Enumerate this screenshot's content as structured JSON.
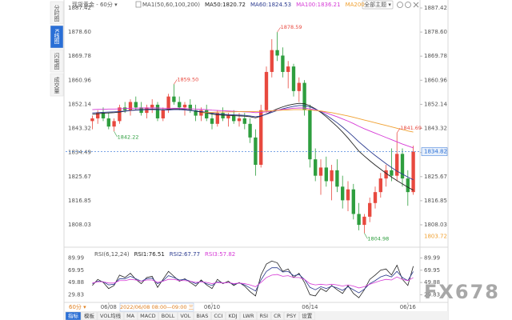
{
  "header": {
    "instrument": "现货黄金 - 60分 ▾",
    "theme_button": "全部主题 ▾"
  },
  "side_tabs": {
    "items": [
      "分时图",
      "K线图",
      "闪电图",
      "成交量"
    ],
    "active": 1
  },
  "period": "60分 ▾",
  "crosshair_label": "2022/06/08 08:00—09:00 三",
  "watermark": "FX678",
  "bottom_tabs": {
    "items": [
      "指标",
      "模板",
      "VOL均线",
      "MA",
      "MACD",
      "BOLL",
      "VOL",
      "BIAS",
      "CCI",
      "KDJ",
      "LWR",
      "RSI",
      "CR",
      "PSY",
      "设置"
    ],
    "active": 0
  },
  "chart_data": [
    {
      "type": "candlestick",
      "legend_title": "MA1(50,60,100,200)",
      "up_color": "#e8493f",
      "down_color": "#2e9e3e",
      "ylim": [
        1801,
        1888
      ],
      "yticks": [
        1887.42,
        {
          "value": 1878.6,
          "label": "1878.60"
        },
        1869.78,
        1860.96,
        1852.14,
        1843.32,
        1834.49,
        1825.67,
        1816.85,
        1808.03
      ],
      "open": [
        1846,
        1847,
        1849,
        1847,
        1844,
        1846,
        1851,
        1850,
        1853,
        1851,
        1849,
        1851,
        1852,
        1847,
        1850,
        1855,
        1853,
        1851,
        1852,
        1850,
        1848,
        1850,
        1847,
        1845,
        1849,
        1847,
        1848,
        1846,
        1847,
        1845,
        1840,
        1830,
        1850,
        1864,
        1872,
        1870,
        1864,
        1866,
        1857,
        1860,
        1850,
        1832,
        1826,
        1829,
        1824,
        1828,
        1822,
        1817,
        1821,
        1812,
        1808,
        1811,
        1816,
        1820,
        1825,
        1828,
        1826,
        1834,
        1825,
        1820
      ],
      "high": [
        1848,
        1850,
        1851,
        1849,
        1847,
        1852,
        1853,
        1854,
        1855,
        1853,
        1852,
        1854,
        1853,
        1851,
        1856,
        1859.5,
        1855,
        1853,
        1854,
        1852,
        1851,
        1852,
        1849,
        1850,
        1851,
        1849,
        1850,
        1849,
        1849,
        1847,
        1843,
        1852,
        1866,
        1876,
        1878.59,
        1873,
        1868,
        1867,
        1862,
        1861,
        1852,
        1836,
        1832,
        1833,
        1830,
        1832,
        1826,
        1824,
        1823,
        1816,
        1812,
        1818,
        1822,
        1827,
        1830,
        1836,
        1841.69,
        1836,
        1828,
        1837
      ],
      "low": [
        1843,
        1845,
        1846,
        1843,
        1842.22,
        1845,
        1849,
        1848,
        1850,
        1848,
        1847,
        1849,
        1846,
        1846,
        1849,
        1852,
        1850,
        1848,
        1849,
        1846,
        1846,
        1846,
        1843,
        1844,
        1846,
        1844,
        1845,
        1844,
        1843,
        1838,
        1826,
        1829,
        1849,
        1862,
        1868,
        1862,
        1858,
        1855,
        1853,
        1848,
        1829,
        1824,
        1819,
        1822,
        1817,
        1820,
        1814,
        1813,
        1810,
        1806,
        1804.98,
        1809,
        1814,
        1818,
        1822,
        1824,
        1824,
        1822,
        1815,
        1819
      ],
      "close": [
        1847,
        1849,
        1847,
        1844,
        1846,
        1851,
        1850,
        1853,
        1851,
        1849,
        1851,
        1852,
        1847,
        1850,
        1855,
        1853,
        1851,
        1852,
        1850,
        1848,
        1850,
        1847,
        1845,
        1849,
        1847,
        1848,
        1846,
        1847,
        1845,
        1840,
        1830,
        1850,
        1864,
        1872,
        1870,
        1864,
        1866,
        1857,
        1860,
        1850,
        1832,
        1826,
        1829,
        1824,
        1828,
        1822,
        1817,
        1821,
        1812,
        1808,
        1811,
        1816,
        1820,
        1825,
        1828,
        1826,
        1834,
        1825,
        1820,
        1834.82
      ],
      "series": [
        {
          "name": "MA50:1820.72",
          "color": "#222222",
          "values": [
            1848.5,
            1848.7,
            1848.9,
            1849.0,
            1849.1,
            1849.3,
            1849.6,
            1849.9,
            1850.1,
            1850.2,
            1850.3,
            1850.4,
            1850.3,
            1850.2,
            1850.3,
            1850.5,
            1850.5,
            1850.3,
            1850.0,
            1849.6,
            1849.3,
            1849.0,
            1848.6,
            1848.3,
            1848.2,
            1848.1,
            1848.0,
            1847.9,
            1847.8,
            1847.6,
            1847.2,
            1847.8,
            1848.6,
            1849.6,
            1850.5,
            1851.2,
            1851.8,
            1852.2,
            1852.5,
            1852.4,
            1851.6,
            1850.5,
            1849.2,
            1847.6,
            1845.8,
            1844.0,
            1842.0,
            1839.8,
            1837.4,
            1835.0,
            1833.2,
            1831.5,
            1829.9,
            1828.4,
            1826.9,
            1825.5,
            1824.2,
            1823.0,
            1821.8,
            1820.72
          ]
        },
        {
          "name": "MA60:1824.53",
          "color": "#2b3a8f",
          "values": [
            1849.0,
            1849.1,
            1849.2,
            1849.3,
            1849.4,
            1849.5,
            1849.7,
            1849.9,
            1850.0,
            1850.1,
            1850.2,
            1850.2,
            1850.2,
            1850.1,
            1850.1,
            1850.2,
            1850.2,
            1850.1,
            1849.9,
            1849.7,
            1849.5,
            1849.2,
            1848.9,
            1848.7,
            1848.5,
            1848.4,
            1848.3,
            1848.2,
            1848.1,
            1847.9,
            1847.6,
            1847.9,
            1848.5,
            1849.2,
            1849.9,
            1850.5,
            1851.0,
            1851.4,
            1851.7,
            1851.7,
            1851.2,
            1850.4,
            1849.4,
            1848.2,
            1846.8,
            1845.4,
            1843.8,
            1842.1,
            1840.3,
            1838.4,
            1836.7,
            1835.0,
            1833.4,
            1831.9,
            1830.4,
            1829.0,
            1827.7,
            1826.6,
            1825.5,
            1824.53
          ]
        },
        {
          "name": "MA100:1836.21",
          "color": "#d63ad6",
          "values": [
            1850.2,
            1850.3,
            1850.3,
            1850.4,
            1850.4,
            1850.5,
            1850.6,
            1850.7,
            1850.7,
            1850.8,
            1850.8,
            1850.8,
            1850.8,
            1850.7,
            1850.7,
            1850.7,
            1850.7,
            1850.6,
            1850.5,
            1850.4,
            1850.3,
            1850.2,
            1850.0,
            1849.9,
            1849.8,
            1849.7,
            1849.6,
            1849.5,
            1849.4,
            1849.3,
            1849.1,
            1849.2,
            1849.4,
            1849.7,
            1850.0,
            1850.3,
            1850.5,
            1850.7,
            1850.8,
            1850.8,
            1850.5,
            1850.1,
            1849.6,
            1849.0,
            1848.3,
            1847.6,
            1846.8,
            1846.0,
            1845.1,
            1844.1,
            1843.2,
            1842.4,
            1841.6,
            1840.8,
            1840.0,
            1839.2,
            1838.4,
            1837.6,
            1836.9,
            1836.21
          ]
        },
        {
          "name": "MA200",
          "color": "#f0a030",
          "values": [
            null,
            null,
            null,
            null,
            null,
            null,
            null,
            null,
            null,
            null,
            null,
            null,
            null,
            null,
            null,
            null,
            null,
            null,
            null,
            null,
            1849.0,
            1849.1,
            1849.2,
            1849.3,
            1849.3,
            1849.4,
            1849.4,
            1849.5,
            1849.5,
            1849.5,
            1849.5,
            1849.6,
            1849.7,
            1849.8,
            1849.9,
            1850.0,
            1850.1,
            1850.2,
            1850.2,
            1850.2,
            1850.1,
            1849.9,
            1849.7,
            1849.4,
            1849.1,
            1848.7,
            1848.3,
            1847.9,
            1847.4,
            1846.9,
            1846.4,
            1845.9,
            1845.4,
            1844.9,
            1844.4,
            1843.9,
            1843.4,
            1842.9,
            1842.4,
            1842.0
          ]
        }
      ],
      "annotations": [
        {
          "text": "1842.22",
          "x": 4,
          "y": 1842.22
        },
        {
          "text": "1859.50",
          "x": 15,
          "y": 1859.5
        },
        {
          "text": "1878.59",
          "x": 34,
          "y": 1878.59
        },
        {
          "text": "1804.98",
          "x": 50,
          "y": 1804.98
        },
        {
          "text": "1841.69",
          "x": 56,
          "y": 1841.69
        }
      ],
      "price_markers": [
        {
          "value": 1834.82,
          "color": "#2a6fd6"
        },
        {
          "value": 1803.72,
          "color": "#f0a030"
        }
      ]
    },
    {
      "type": "line",
      "title": "RSI(6,12,24)",
      "categories": [
        null,
        null,
        null,
        "06/08",
        null,
        null,
        null,
        null,
        null,
        null,
        null,
        null,
        null,
        null,
        null,
        null,
        null,
        null,
        null,
        null,
        null,
        null,
        "06/10",
        null,
        null,
        null,
        null,
        null,
        null,
        null,
        null,
        null,
        null,
        null,
        null,
        null,
        null,
        null,
        null,
        null,
        "06/14",
        null,
        null,
        null,
        null,
        null,
        null,
        null,
        null,
        null,
        null,
        null,
        null,
        null,
        null,
        null,
        null,
        null,
        "06/16",
        null
      ],
      "ylim": [
        20,
        101
      ],
      "yticks": [
        89.99,
        69.95,
        49.88,
        29.83
      ],
      "series": [
        {
          "name": "RSI1:76.51",
          "color": "#222222",
          "values": [
            45,
            55,
            50,
            40,
            45,
            62,
            58,
            65,
            55,
            48,
            58,
            60,
            42,
            55,
            68,
            60,
            52,
            56,
            50,
            44,
            54,
            46,
            40,
            55,
            48,
            52,
            45,
            50,
            44,
            35,
            28,
            62,
            80,
            85,
            82,
            68,
            72,
            58,
            65,
            50,
            30,
            28,
            40,
            35,
            45,
            38,
            32,
            45,
            32,
            25,
            38,
            55,
            62,
            70,
            72,
            62,
            78,
            55,
            45,
            76.51
          ]
        },
        {
          "name": "RSI2:67.77",
          "color": "#2b3a8f",
          "values": [
            48,
            52,
            51,
            46,
            47,
            56,
            56,
            60,
            56,
            52,
            56,
            57,
            48,
            53,
            61,
            58,
            54,
            55,
            52,
            48,
            52,
            48,
            45,
            51,
            49,
            50,
            47,
            49,
            46,
            41,
            36,
            54,
            68,
            74,
            74,
            67,
            68,
            61,
            63,
            55,
            42,
            38,
            43,
            40,
            44,
            41,
            37,
            43,
            38,
            33,
            39,
            48,
            53,
            59,
            62,
            59,
            68,
            58,
            53,
            67.77
          ]
        },
        {
          "name": "RSI3:57.82",
          "color": "#d63ad6",
          "values": [
            49,
            51,
            51,
            49,
            49,
            53,
            53,
            55,
            54,
            52,
            54,
            54,
            50,
            52,
            55,
            55,
            53,
            53,
            52,
            50,
            51,
            50,
            48,
            50,
            49,
            50,
            48,
            49,
            48,
            46,
            43,
            50,
            58,
            62,
            63,
            60,
            61,
            58,
            58,
            55,
            48,
            46,
            47,
            46,
            47,
            46,
            44,
            46,
            44,
            41,
            43,
            47,
            50,
            53,
            55,
            54,
            59,
            55,
            53,
            57.82
          ]
        }
      ]
    }
  ]
}
